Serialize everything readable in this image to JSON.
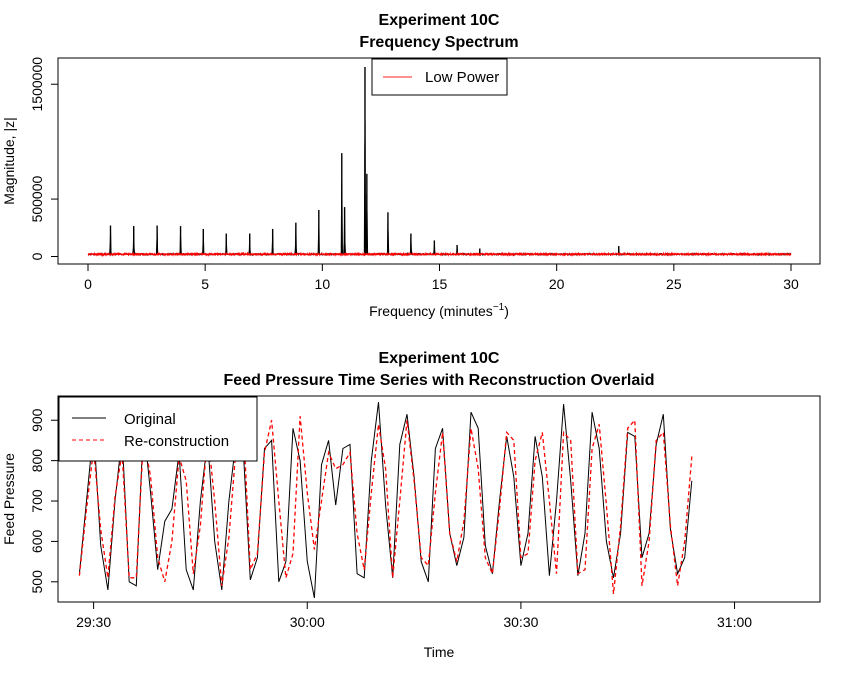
{
  "chart_data": [
    {
      "type": "line",
      "title": "Experiment 10C",
      "subtitle": "Frequency Spectrum",
      "xlabel_main": "Frequency (minutes",
      "xlabel_sup": "−1",
      "xlabel_tail": ")",
      "ylabel": "Magnitude, |z|",
      "xlim": [
        0,
        30
      ],
      "ylim": [
        0,
        1650000
      ],
      "xticks": [
        0,
        5,
        10,
        15,
        20,
        25,
        30
      ],
      "xtick_labels": [
        "0",
        "5",
        "10",
        "15",
        "20",
        "25",
        "30"
      ],
      "yticks": [
        0,
        500000,
        1500000
      ],
      "ytick_labels": [
        "0",
        "500000",
        "1500000"
      ],
      "legend": {
        "position": "top-center",
        "entries": [
          {
            "label": "Low Power",
            "color": "#ff4d4d"
          }
        ]
      },
      "series": [
        {
          "color": "#000000",
          "baseline": 20000,
          "peaks": [
            {
              "x": 0.96,
              "y": 270000
            },
            {
              "x": 1.95,
              "y": 265000
            },
            {
              "x": 2.95,
              "y": 270000
            },
            {
              "x": 3.95,
              "y": 265000
            },
            {
              "x": 4.92,
              "y": 240000
            },
            {
              "x": 5.9,
              "y": 200000
            },
            {
              "x": 6.9,
              "y": 200000
            },
            {
              "x": 7.88,
              "y": 240000
            },
            {
              "x": 8.87,
              "y": 295000
            },
            {
              "x": 9.85,
              "y": 405000
            },
            {
              "x": 10.83,
              "y": 900000
            },
            {
              "x": 10.95,
              "y": 430000
            },
            {
              "x": 11.82,
              "y": 1650000
            },
            {
              "x": 11.9,
              "y": 720000
            },
            {
              "x": 12.8,
              "y": 385000
            },
            {
              "x": 13.78,
              "y": 200000
            },
            {
              "x": 14.78,
              "y": 140000
            },
            {
              "x": 15.75,
              "y": 100000
            },
            {
              "x": 16.72,
              "y": 70000
            },
            {
              "x": 22.65,
              "y": 90000
            }
          ]
        },
        {
          "color": "#ff0000",
          "baseline": 20000,
          "noise": 14000
        }
      ]
    },
    {
      "type": "line",
      "title": "Experiment 10C",
      "subtitle": "Feed Pressure Time Series with Reconstruction Overlaid",
      "xlabel": "Time",
      "ylabel": "Feed Pressure",
      "xlim": [
        "29:25",
        "31:12"
      ],
      "ylim": [
        450,
        960
      ],
      "xticks": [
        "29:30",
        "30:00",
        "30:30",
        "31:00"
      ],
      "yticks": [
        500,
        600,
        700,
        800,
        900
      ],
      "legend": {
        "position": "top-left",
        "entries": [
          {
            "label": "Original",
            "color": "#000000",
            "dash": "solid"
          },
          {
            "label": "Re-construction",
            "color": "#ff0000",
            "dash": "dashed"
          }
        ]
      },
      "sample_interval_seconds": 1,
      "series": [
        {
          "name": "Original",
          "color": "#000000",
          "x_start": "29:28",
          "values": [
            520,
            700,
            880,
            590,
            480,
            700,
            860,
            500,
            490,
            890,
            720,
            530,
            650,
            680,
            820,
            530,
            480,
            700,
            850,
            600,
            480,
            700,
            850,
            830,
            505,
            560,
            830,
            850,
            500,
            550,
            880,
            800,
            550,
            460,
            790,
            850,
            690,
            830,
            840,
            520,
            510,
            800,
            945,
            690,
            510,
            840,
            915,
            760,
            550,
            500,
            830,
            880,
            620,
            540,
            610,
            920,
            880,
            590,
            520,
            700,
            860,
            760,
            540,
            620,
            860,
            760,
            515,
            700,
            940,
            750,
            515,
            620,
            920,
            830,
            600,
            510,
            620,
            870,
            860,
            560,
            620,
            840,
            915,
            630,
            520,
            560,
            750
          ]
        },
        {
          "name": "Re-construction",
          "color": "#ff0000",
          "x_start": "29:28",
          "values": [
            515,
            680,
            830,
            630,
            510,
            710,
            820,
            510,
            510,
            860,
            760,
            560,
            500,
            600,
            810,
            750,
            520,
            640,
            870,
            700,
            490,
            610,
            830,
            900,
            530,
            570,
            820,
            900,
            700,
            510,
            570,
            910,
            720,
            580,
            700,
            820,
            780,
            790,
            820,
            620,
            530,
            720,
            890,
            780,
            510,
            700,
            900,
            750,
            560,
            540,
            720,
            870,
            620,
            550,
            650,
            880,
            780,
            560,
            520,
            680,
            870,
            850,
            560,
            570,
            800,
            870,
            700,
            520,
            870,
            850,
            520,
            530,
            830,
            890,
            690,
            470,
            640,
            880,
            900,
            490,
            600,
            850,
            870,
            640,
            490,
            600,
            810
          ]
        }
      ]
    }
  ]
}
